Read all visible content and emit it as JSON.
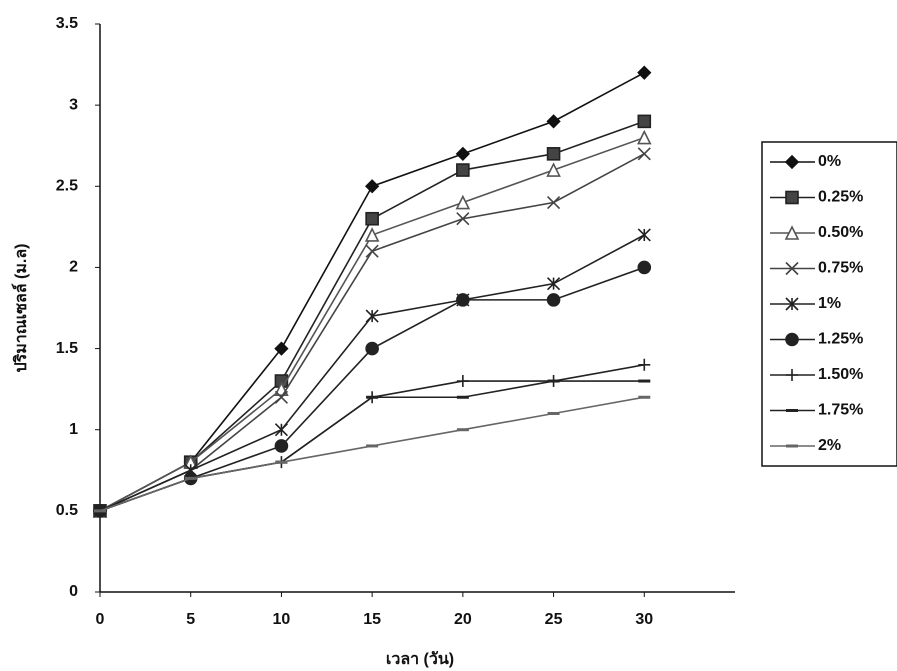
{
  "chart_data": {
    "type": "line",
    "x_label": "เวลา (วัน)",
    "y_label": "ปริมาณเซลล์ (ม.ล)",
    "x": [
      0,
      5,
      10,
      15,
      20,
      25,
      30
    ],
    "xlim": [
      0,
      35
    ],
    "xticks": [
      0,
      5,
      10,
      15,
      20,
      25,
      30
    ],
    "ylim": [
      0,
      3.5
    ],
    "yticks": [
      0,
      0.5,
      1,
      1.5,
      2,
      2.5,
      3,
      3.5
    ],
    "legend": "right",
    "series": [
      {
        "name": "0%",
        "color": "#111111",
        "marker": "diamond",
        "values": [
          0.5,
          0.8,
          1.5,
          2.5,
          2.7,
          2.9,
          3.2
        ]
      },
      {
        "name": "0.25%",
        "color": "#222222",
        "marker": "square",
        "values": [
          0.5,
          0.8,
          1.3,
          2.3,
          2.6,
          2.7,
          2.9
        ]
      },
      {
        "name": "0.50%",
        "color": "#555555",
        "marker": "triangle",
        "values": [
          0.5,
          0.8,
          1.25,
          2.2,
          2.4,
          2.6,
          2.8
        ]
      },
      {
        "name": "0.75%",
        "color": "#444444",
        "marker": "cross",
        "values": [
          0.5,
          0.75,
          1.2,
          2.1,
          2.3,
          2.4,
          2.7
        ]
      },
      {
        "name": "1%",
        "color": "#222222",
        "marker": "star",
        "values": [
          0.5,
          0.75,
          1.0,
          1.7,
          1.8,
          1.9,
          2.2
        ]
      },
      {
        "name": "1.25%",
        "color": "#222222",
        "marker": "circle",
        "values": [
          0.5,
          0.7,
          0.9,
          1.5,
          1.8,
          1.8,
          2.0
        ]
      },
      {
        "name": "1.50%",
        "color": "#222222",
        "marker": "plus",
        "values": [
          0.5,
          0.7,
          0.8,
          1.2,
          1.3,
          1.3,
          1.4
        ]
      },
      {
        "name": "1.75%",
        "color": "#222222",
        "marker": "dash",
        "values": [
          0.5,
          0.7,
          0.8,
          1.2,
          1.2,
          1.3,
          1.3
        ]
      },
      {
        "name": "2%",
        "color": "#666666",
        "marker": "dash",
        "values": [
          0.5,
          0.7,
          0.8,
          0.9,
          1.0,
          1.1,
          1.2
        ]
      }
    ]
  }
}
